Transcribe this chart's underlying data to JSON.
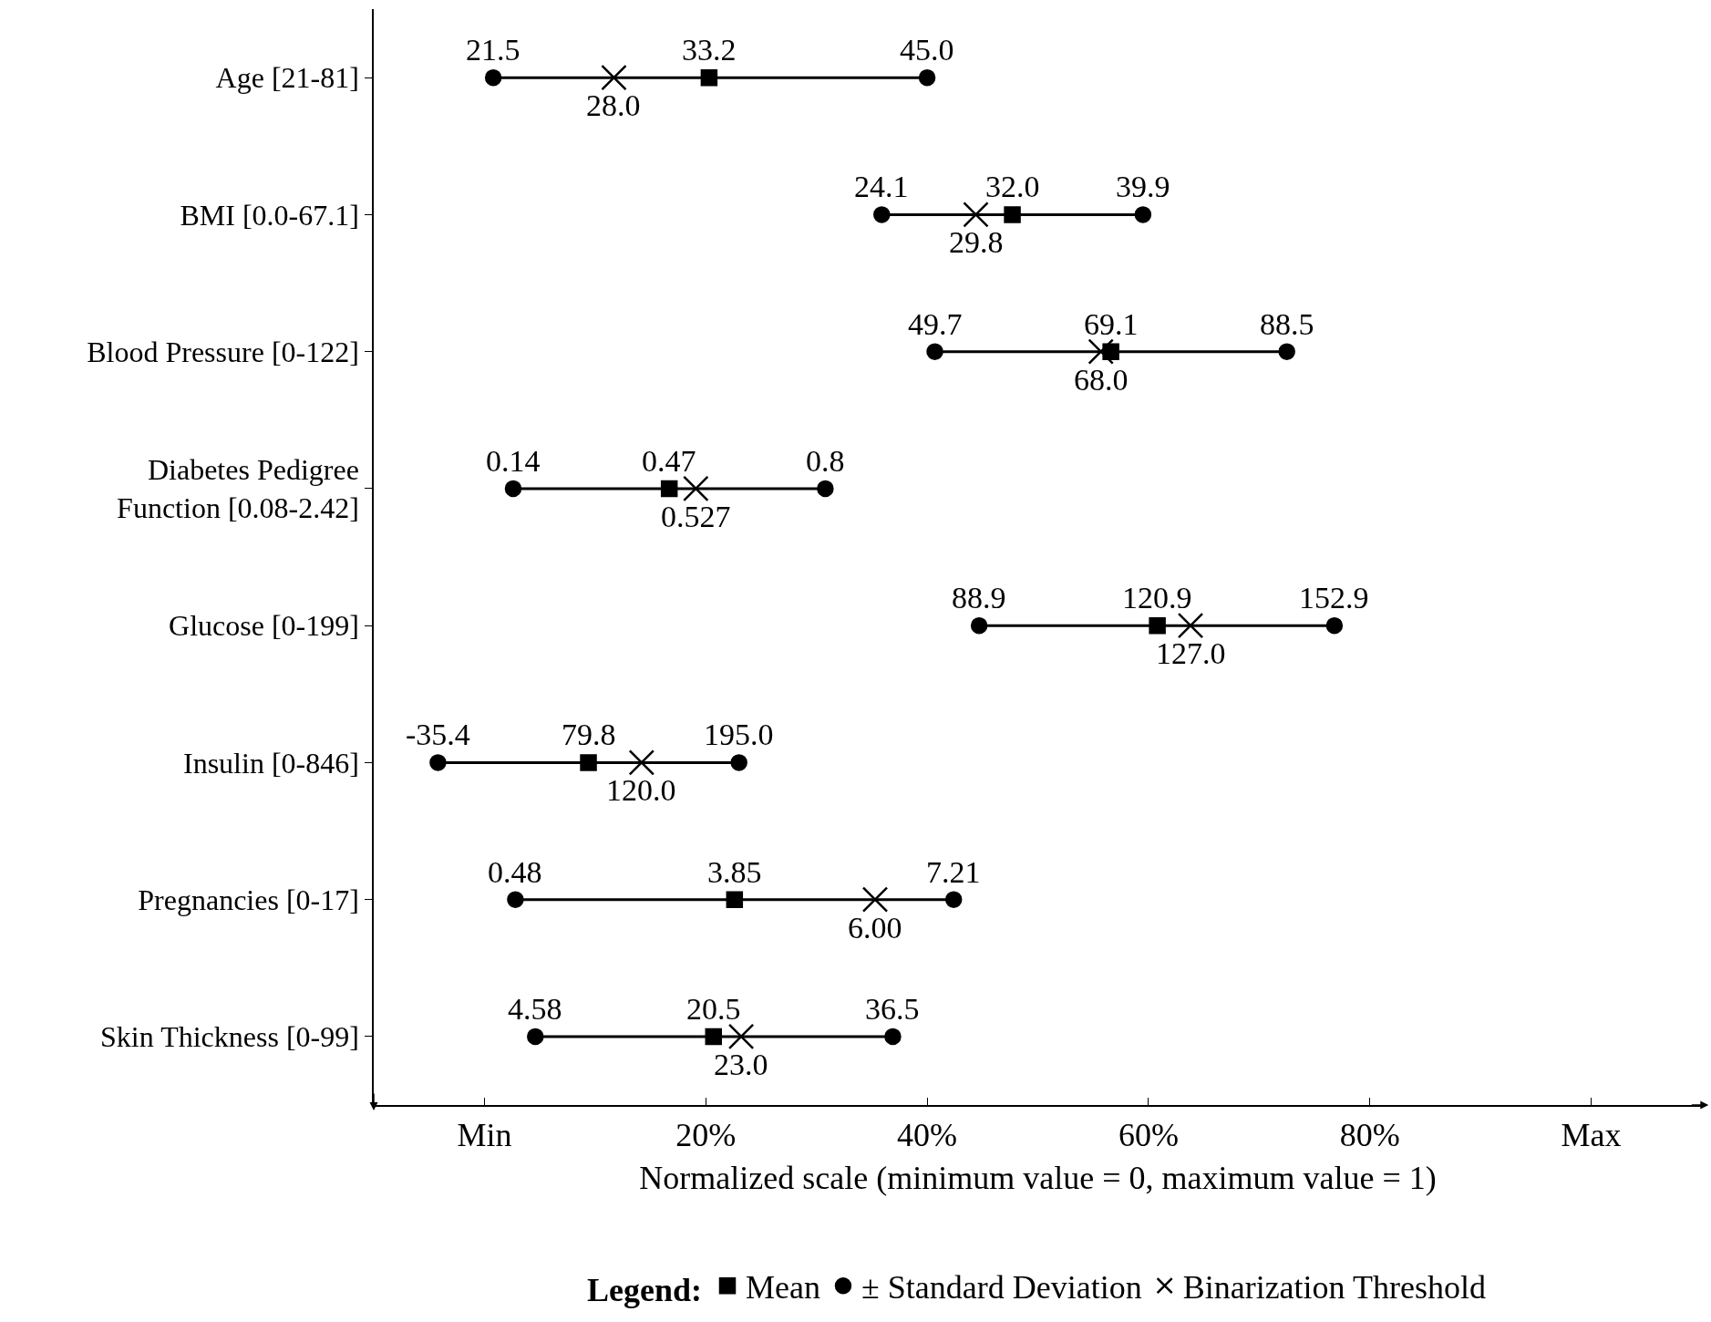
{
  "chart_data": {
    "type": "scatter",
    "orientation": "horizontal",
    "xlabel": "Normalized scale (minimum value = 0, maximum value = 1)",
    "legend_title": "Legend:",
    "legend": "bottom",
    "grid": false,
    "categories": [
      "Age [21-81]",
      "BMI [0.0-67.1]",
      "Blood Pressure [0-122]",
      "Diabetes Pedigree Function [0.08-2.42]",
      "Glucose [0-199]",
      "Insulin [0-846]",
      "Pregnancies [0-17]",
      "Skin Thickness [0-99]"
    ],
    "xlim": [
      -0.1,
      1.1
    ],
    "xticks": [
      {
        "value": 0,
        "label": "Min"
      },
      {
        "value": 0.2,
        "label": "20%"
      },
      {
        "value": 0.4,
        "label": "40%"
      },
      {
        "value": 0.6,
        "label": "60%"
      },
      {
        "value": 0.8,
        "label": "80%"
      },
      {
        "value": 1,
        "label": "Max"
      }
    ],
    "series": [
      {
        "name": "Mean",
        "color": "#000000",
        "marker": "square",
        "values": [
          0.203,
          0.477,
          0.566,
          0.167,
          0.608,
          0.094,
          0.226,
          0.207
        ]
      },
      {
        "name": "± Standard Deviation",
        "color": "#000000",
        "marker": "circle",
        "values": [
          0.008,
          0.359,
          0.407,
          0.026,
          0.447,
          -0.042,
          0.028,
          0.046
        ]
      },
      {
        "color": "#000000",
        "marker": "circle",
        "values": [
          0.4,
          0.595,
          0.725,
          0.308,
          0.768,
          0.23,
          0.424,
          0.369
        ]
      },
      {
        "name": "Binarization Threshold",
        "color": "#000000",
        "marker": "cross",
        "values": [
          0.117,
          0.444,
          0.557,
          0.191,
          0.638,
          0.142,
          0.353,
          0.232
        ]
      }
    ],
    "annotations": [
      {
        "text": "33.2",
        "x": 0.203,
        "y": "Age [21-81]"
      },
      {
        "text": "21.5",
        "x": 0.008,
        "y": "Age [21-81]"
      },
      {
        "text": "45.0",
        "x": 0.4,
        "y": "Age [21-81]"
      },
      {
        "text": "28.0",
        "x": 0.117,
        "y": "Age [21-81]"
      },
      {
        "text": "32.0",
        "x": 0.477,
        "y": "BMI [0.0-67.1]"
      },
      {
        "text": "24.1",
        "x": 0.359,
        "y": "BMI [0.0-67.1]"
      },
      {
        "text": "39.9",
        "x": 0.595,
        "y": "BMI [0.0-67.1]"
      },
      {
        "text": "29.8",
        "x": 0.444,
        "y": "BMI [0.0-67.1]"
      },
      {
        "text": "69.1",
        "x": 0.566,
        "y": "Blood Pressure [0-122]"
      },
      {
        "text": "49.7",
        "x": 0.407,
        "y": "Blood Pressure [0-122]"
      },
      {
        "text": "88.5",
        "x": 0.725,
        "y": "Blood Pressure [0-122]"
      },
      {
        "text": "68.0",
        "x": 0.557,
        "y": "Blood Pressure [0-122]"
      },
      {
        "text": "0.47",
        "x": 0.167,
        "y": "Diabetes Pedigree Function [0.08-2.42]"
      },
      {
        "text": "0.14",
        "x": 0.026,
        "y": "Diabetes Pedigree Function [0.08-2.42]"
      },
      {
        "text": "0.8",
        "x": 0.308,
        "y": "Diabetes Pedigree Function [0.08-2.42]"
      },
      {
        "text": "0.527",
        "x": 0.191,
        "y": "Diabetes Pedigree Function [0.08-2.42]"
      },
      {
        "text": "120.9",
        "x": 0.608,
        "y": "Glucose [0-199]"
      },
      {
        "text": "88.9",
        "x": 0.447,
        "y": "Glucose [0-199]"
      },
      {
        "text": "152.9",
        "x": 0.768,
        "y": "Glucose [0-199]"
      },
      {
        "text": "127.0",
        "x": 0.638,
        "y": "Glucose [0-199]"
      },
      {
        "text": "79.8",
        "x": 0.094,
        "y": "Insulin [0-846]"
      },
      {
        "text": "-35.4",
        "x": -0.042,
        "y": "Insulin [0-846]"
      },
      {
        "text": "195.0",
        "x": 0.23,
        "y": "Insulin [0-846]"
      },
      {
        "text": "120.0",
        "x": 0.142,
        "y": "Insulin [0-846]"
      },
      {
        "text": "3.85",
        "x": 0.226,
        "y": "Pregnancies [0-17]"
      },
      {
        "text": "0.48",
        "x": 0.028,
        "y": "Pregnancies [0-17]"
      },
      {
        "text": "7.21",
        "x": 0.424,
        "y": "Pregnancies [0-17]"
      },
      {
        "text": "6.00",
        "x": 0.353,
        "y": "Pregnancies [0-17]"
      },
      {
        "text": "20.5",
        "x": 0.207,
        "y": "Skin Thickness [0-99]"
      },
      {
        "text": "4.58",
        "x": 0.046,
        "y": "Skin Thickness [0-99]"
      },
      {
        "text": "36.5",
        "x": 0.369,
        "y": "Skin Thickness [0-99]"
      },
      {
        "text": "23.0",
        "x": 0.232,
        "y": "Skin Thickness [0-99]"
      }
    ]
  }
}
